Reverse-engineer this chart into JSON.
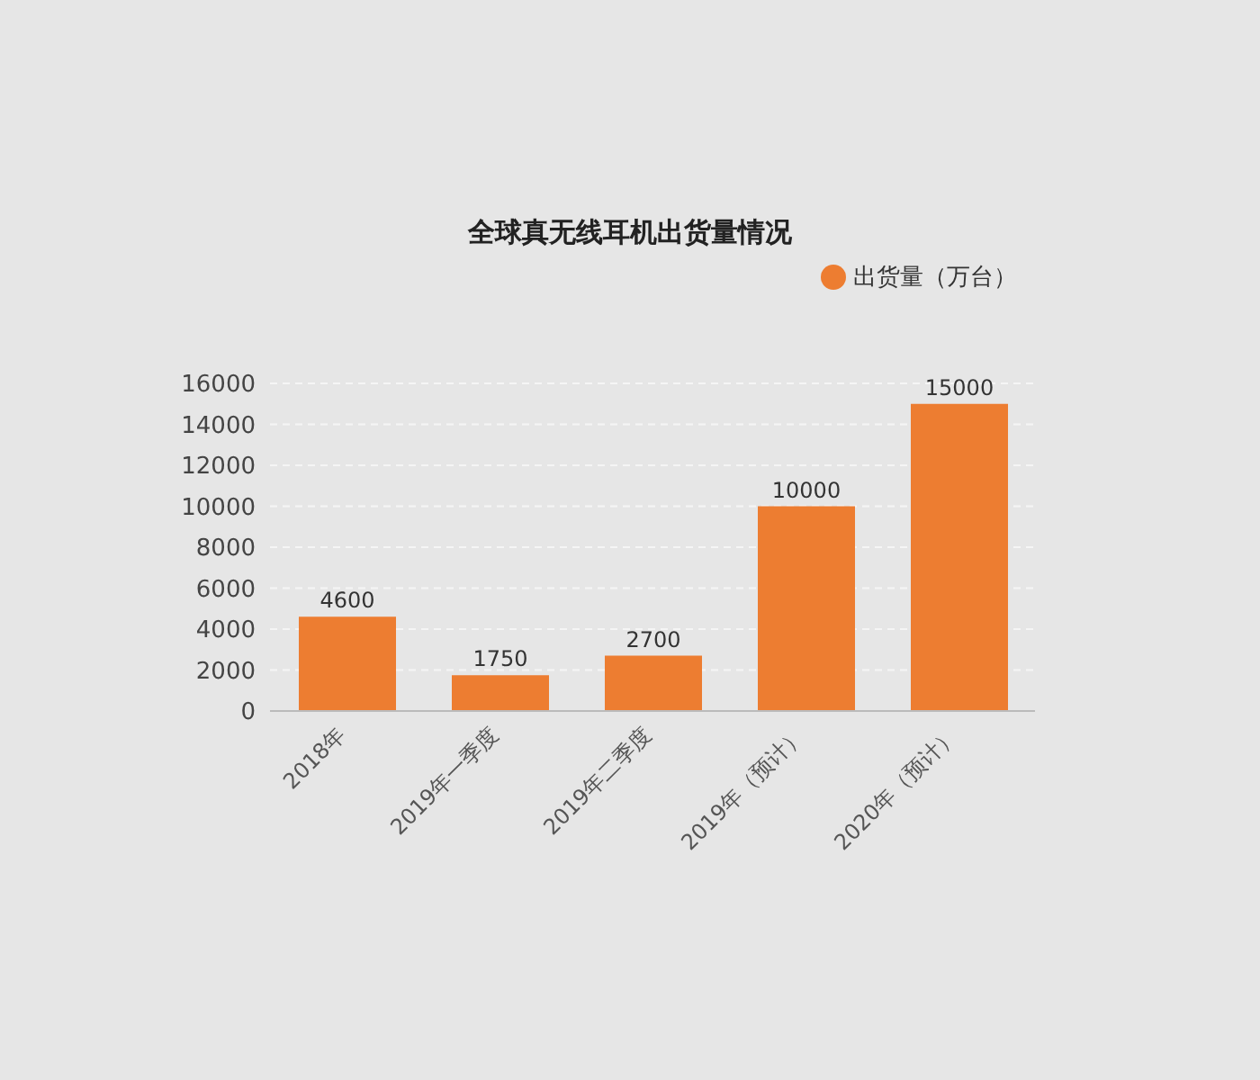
{
  "chart_data": {
    "type": "bar",
    "title": "全球真无线耳机出货量情况",
    "categories": [
      "2018年",
      "2019年一季度",
      "2019年二季度",
      "2019年（预计）",
      "2020年（预计）"
    ],
    "series": [
      {
        "name": "出货量（万台）",
        "color": "#ed7d31",
        "values": [
          4600,
          1750,
          2700,
          10000,
          15000
        ]
      }
    ],
    "ylim": [
      0,
      16000
    ],
    "yticks": [
      0,
      2000,
      4000,
      6000,
      8000,
      10000,
      12000,
      14000,
      16000
    ],
    "grid": "y",
    "legend": "top right",
    "data_labels": true
  }
}
